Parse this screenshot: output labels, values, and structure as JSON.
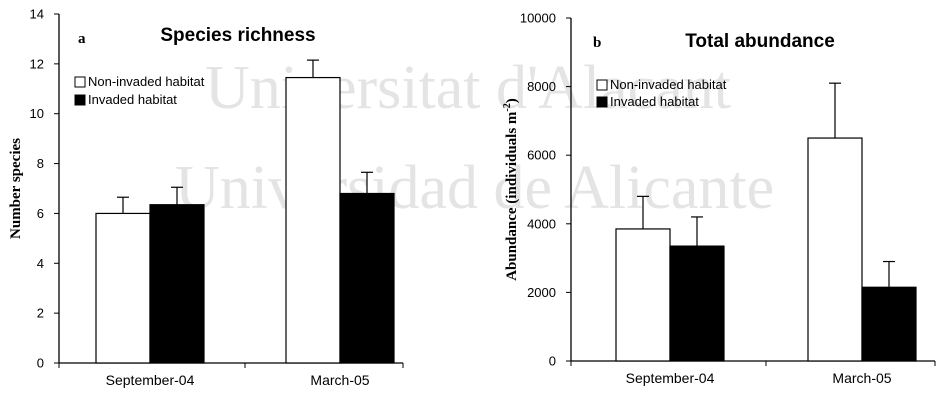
{
  "watermark": [
    "Universitat d'Alacant",
    "Universidad de Alicante"
  ],
  "chart_data": [
    {
      "type": "bar",
      "panel": "a",
      "title": "Species richness",
      "xlabel": "",
      "ylabel": "Number species",
      "ylim": [
        0,
        14
      ],
      "yticks": [
        0,
        2,
        4,
        6,
        8,
        10,
        12,
        14
      ],
      "categories": [
        "September-04",
        "March-05"
      ],
      "series": [
        {
          "name": "Non-invaded habitat",
          "color": "#ffffff",
          "values": [
            6.0,
            11.45
          ],
          "errors": [
            0.65,
            0.7
          ]
        },
        {
          "name": "Invaded habitat",
          "color": "#000000",
          "values": [
            6.35,
            6.8
          ],
          "errors": [
            0.7,
            0.85
          ]
        }
      ],
      "legend": "top-left",
      "grid": false
    },
    {
      "type": "bar",
      "panel": "b",
      "title": "Total abundance",
      "xlabel": "",
      "ylabel": "Abundance (individuals m",
      "ylabel_sup": "-2",
      "ylabel_end": ")",
      "ylim": [
        0,
        10000
      ],
      "yticks": [
        0,
        2000,
        4000,
        6000,
        8000,
        10000
      ],
      "categories": [
        "September-04",
        "March-05"
      ],
      "series": [
        {
          "name": "Non-invaded habitat",
          "color": "#ffffff",
          "values": [
            3850,
            6500
          ],
          "errors": [
            950,
            1600
          ]
        },
        {
          "name": "Invaded habitat",
          "color": "#000000",
          "values": [
            3350,
            2150
          ],
          "errors": [
            850,
            750
          ]
        }
      ],
      "legend": "top-left",
      "grid": false
    }
  ]
}
